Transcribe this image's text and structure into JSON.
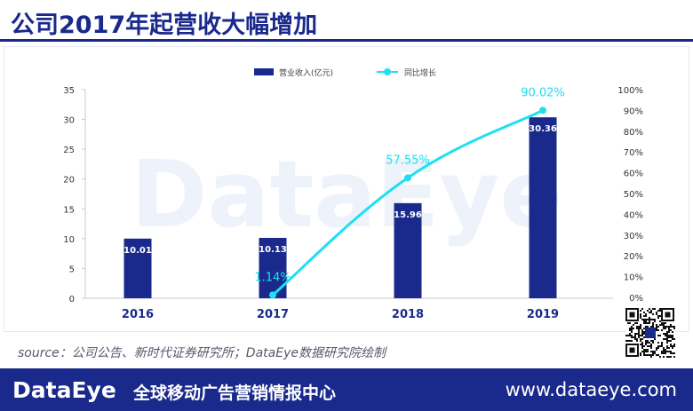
{
  "header": {
    "title": "公司2017年起营收大幅增加"
  },
  "watermark": "DataEye",
  "source": "source：公司公告、新时代证券研究所；DataEye数据研究院绘制",
  "footer": {
    "brand": "DataEye",
    "tagline": "全球移动广告营销情报中心",
    "url": "www.dataeye.com"
  },
  "colors": {
    "brand": "#1a2a8c",
    "bar": "#1a2a8c",
    "line": "#1de0f0"
  },
  "chart_data": {
    "type": "bar",
    "title": "",
    "categories": [
      "2016",
      "2017",
      "2018",
      "2019"
    ],
    "series": [
      {
        "name": "营业收入(亿元)",
        "type": "bar",
        "axis": "left",
        "values": [
          10.01,
          10.13,
          15.96,
          30.36
        ],
        "labels": [
          "10.01",
          "10.13",
          "15.96",
          "30.36"
        ]
      },
      {
        "name": "同比增长",
        "type": "line",
        "axis": "right",
        "values": [
          null,
          1.14,
          57.55,
          90.02
        ],
        "labels": [
          "",
          "1.14%",
          "57.55%",
          "90.02%"
        ]
      }
    ],
    "y_left": {
      "ylim": [
        0,
        35
      ],
      "ticks": [
        "0",
        "5",
        "10",
        "15",
        "20",
        "25",
        "30",
        "35"
      ]
    },
    "y_right": {
      "ylim": [
        0,
        100
      ],
      "ticks": [
        "0%",
        "10%",
        "20%",
        "30%",
        "40%",
        "50%",
        "60%",
        "70%",
        "80%",
        "90%",
        "100%"
      ]
    },
    "legend": "top-center",
    "grid": false
  }
}
